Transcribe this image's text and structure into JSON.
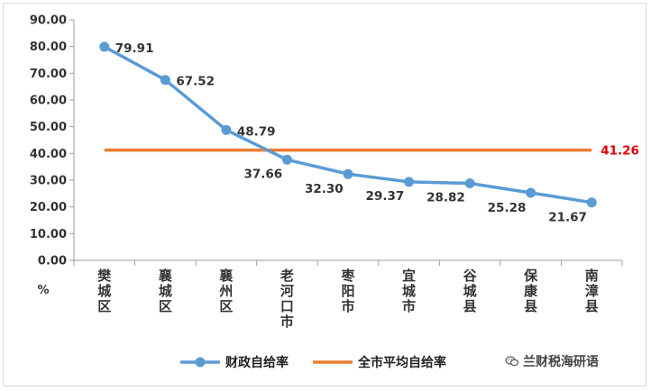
{
  "chart_data": {
    "type": "line",
    "categories": [
      "樊城区",
      "襄城区",
      "襄州区",
      "老河口市",
      "枣阳市",
      "宜城市",
      "谷城县",
      "保康县",
      "南漳县"
    ],
    "series": [
      {
        "name": "财政自给率",
        "values": [
          79.91,
          67.52,
          48.79,
          37.66,
          32.3,
          29.37,
          28.82,
          25.28,
          21.67
        ],
        "labels": [
          "79.91",
          "67.52",
          "48.79",
          "37.66",
          "32.30",
          "29.37",
          "28.82",
          "25.28",
          "21.67"
        ],
        "color": "#5b9bd5",
        "marker": "circle"
      },
      {
        "name": "全市平均自给率",
        "values": [
          41.26,
          41.26,
          41.26,
          41.26,
          41.26,
          41.26,
          41.26,
          41.26,
          41.26
        ],
        "label": "41.26",
        "color": "#ed7d31",
        "label_color": "#e00000"
      }
    ],
    "ylim": [
      0,
      90
    ],
    "yticks": [
      "0.00",
      "10.00",
      "20.00",
      "30.00",
      "40.00",
      "50.00",
      "60.00",
      "70.00",
      "80.00",
      "90.00"
    ],
    "ylabel": "%",
    "grid": false,
    "legend_position": "bottom"
  },
  "watermark": {
    "icon": "wechat-icon",
    "text": "兰财税海研语"
  }
}
